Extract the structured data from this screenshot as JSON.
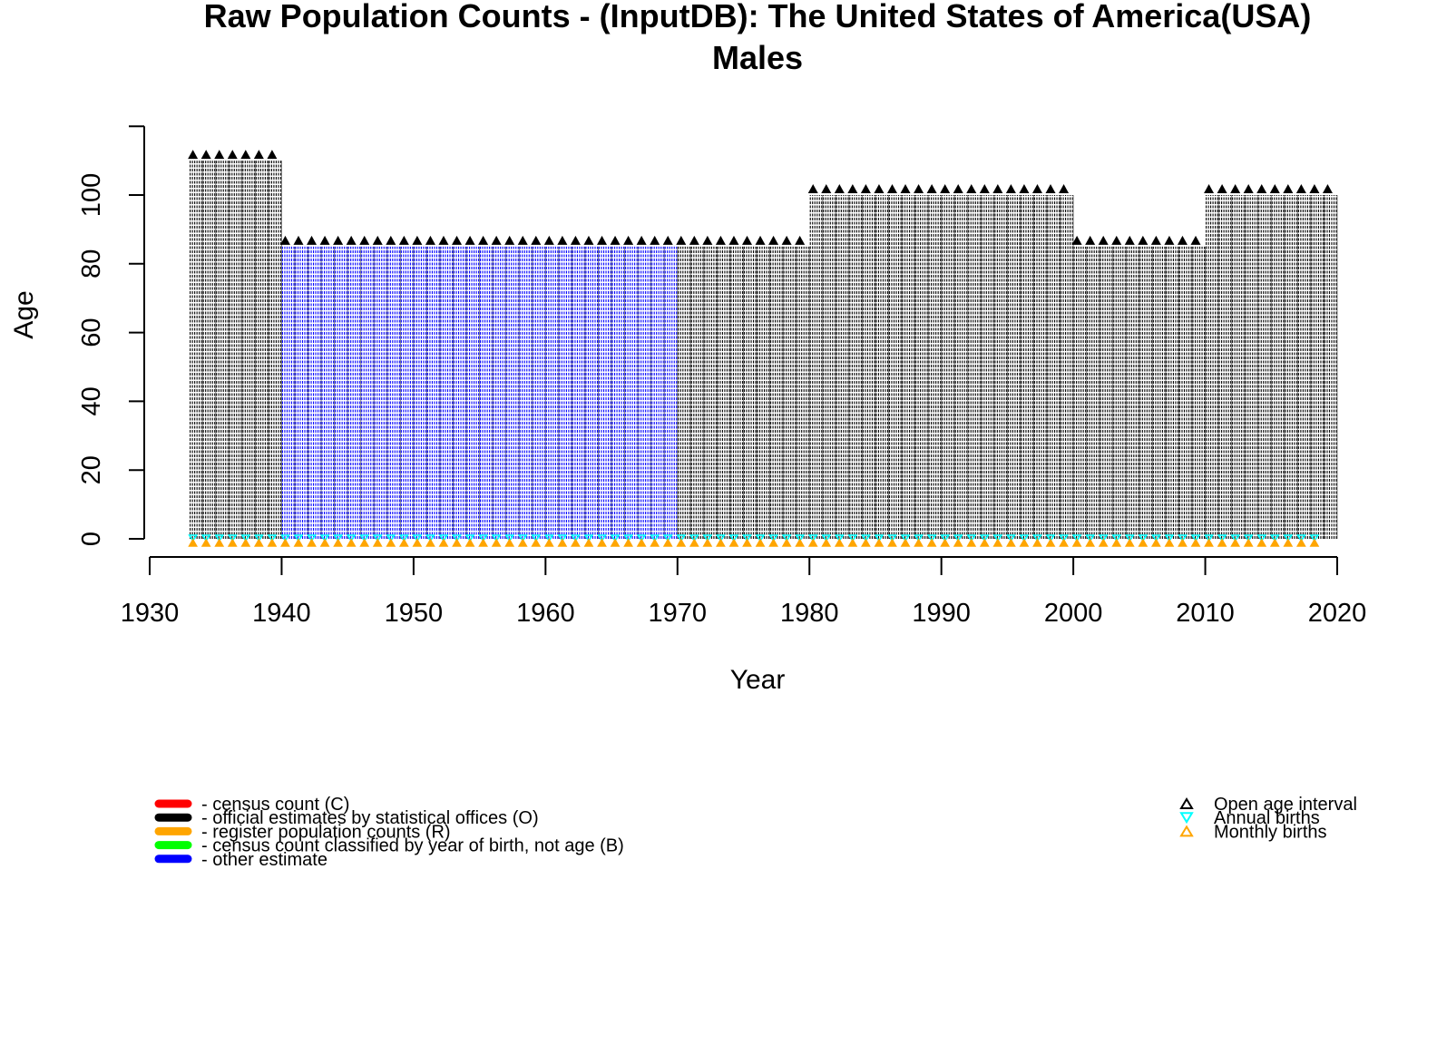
{
  "chart_data": {
    "type": "scatter",
    "title": "Raw Population Counts - (InputDB): The United States of America(USA)",
    "subtitle": "Males",
    "xlabel": "Year",
    "ylabel": "Age",
    "xlim": [
      1930,
      2020
    ],
    "ylim": [
      0,
      120
    ],
    "x_ticks": [
      "1930",
      "1940",
      "1950",
      "1960",
      "1970",
      "1980",
      "1990",
      "2000",
      "2010",
      "2020"
    ],
    "y_ticks": [
      "0",
      "20",
      "40",
      "60",
      "80",
      "100"
    ],
    "grid": false,
    "colors": {
      "census": "#ff0000",
      "official": "#000000",
      "register": "#ffa500",
      "birth_cohort": "#00ff00",
      "other": "#0000ff",
      "annual_births": "#00ffff",
      "monthly_births": "#ffa500"
    },
    "open_age_segments": [
      {
        "from": 1933,
        "to": 1939,
        "age": 110,
        "type": "official"
      },
      {
        "from": 1940,
        "to": 1969,
        "age": 85,
        "type": "other"
      },
      {
        "from": 1970,
        "to": 1979,
        "age": 85,
        "type": "official"
      },
      {
        "from": 1980,
        "to": 1999,
        "age": 100,
        "type": "official"
      },
      {
        "from": 2000,
        "to": 2009,
        "age": 85,
        "type": "official"
      },
      {
        "from": 2010,
        "to": 2019,
        "age": 100,
        "type": "official"
      }
    ],
    "annual_births": {
      "from": 1933,
      "to": 2018
    },
    "monthly_births": {
      "from": 1933,
      "to": 2018
    },
    "legend_left": [
      {
        "label": "- census count (C)",
        "color": "#ff0000"
      },
      {
        "label": "- official estimates by statistical offices (O)",
        "color": "#000000"
      },
      {
        "label": "- register population counts (R)",
        "color": "#ffa500"
      },
      {
        "label": "- census count classified by year of birth, not age (B)",
        "color": "#00ff00"
      },
      {
        "label": "- other estimate",
        "color": "#0000ff"
      }
    ],
    "legend_right": [
      {
        "label": "Open age interval",
        "marker": "triangle-up",
        "color": "#000000"
      },
      {
        "label": "Annual births",
        "marker": "triangle-down",
        "color": "#00ffff"
      },
      {
        "label": "Monthly births",
        "marker": "triangle-up",
        "color": "#ffa500"
      }
    ]
  }
}
